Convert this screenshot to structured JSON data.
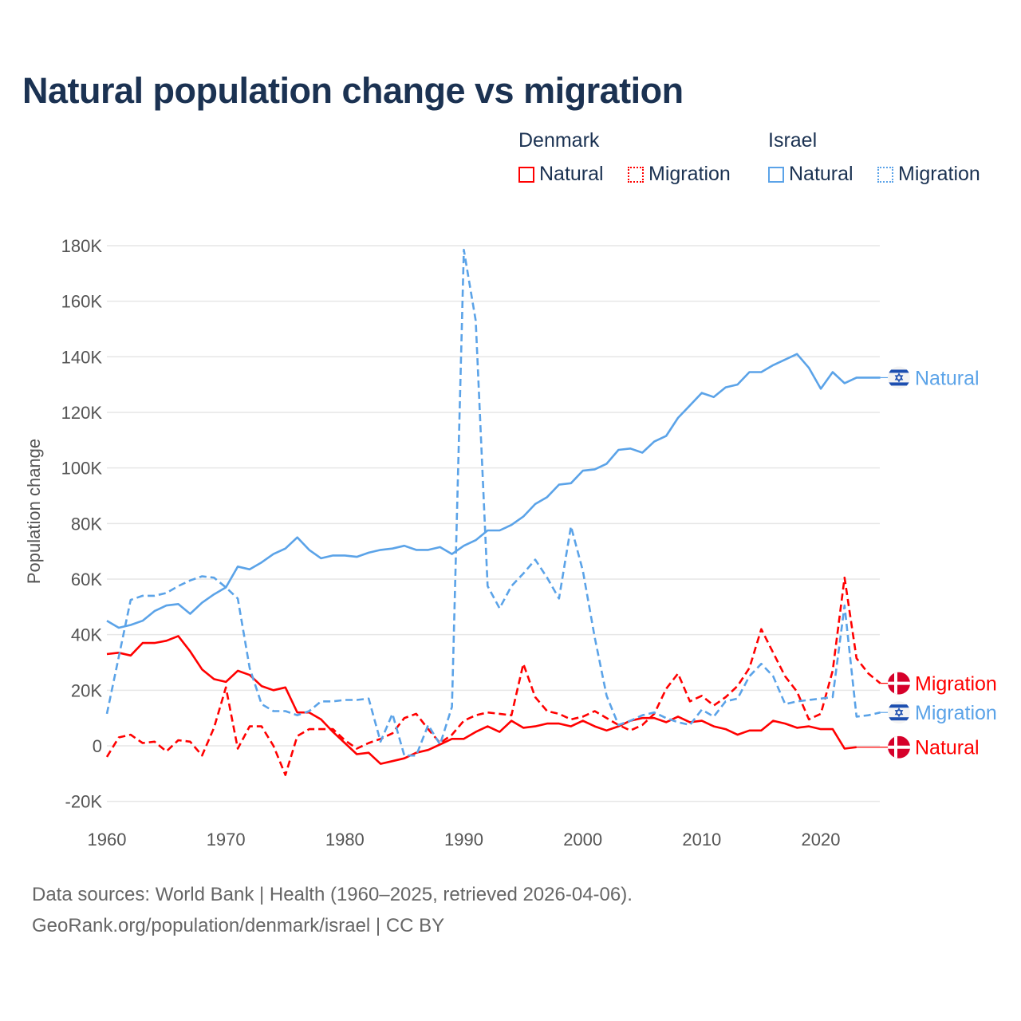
{
  "title": "Natural population change vs migration",
  "legend": {
    "groups": [
      {
        "name": "Denmark",
        "color": "#ff0000",
        "items": [
          "Natural",
          "Migration"
        ]
      },
      {
        "name": "Israel",
        "color": "#5ba3e8",
        "items": [
          "Natural",
          "Migration"
        ]
      }
    ]
  },
  "footer": {
    "line1": "Data sources: World Bank | Health (1960–2025, retrieved 2026-04-06).",
    "line2": "GeoRank.org/population/denmark/israel | CC BY"
  },
  "chart_data": {
    "type": "line",
    "title": "Natural population change vs migration",
    "xlabel": "",
    "ylabel": "Population change",
    "xlim": [
      1960,
      2025
    ],
    "ylim": [
      -20000,
      180000
    ],
    "grid": true,
    "legend_position": "top-right",
    "x_ticks": [
      1960,
      1970,
      1980,
      1990,
      2000,
      2010,
      2020
    ],
    "x_tick_labels": [
      "1960",
      "1970",
      "1980",
      "1990",
      "2000",
      "2010",
      "2020"
    ],
    "y_ticks": [
      -20000,
      0,
      20000,
      40000,
      60000,
      80000,
      100000,
      120000,
      140000,
      160000,
      180000
    ],
    "y_tick_labels": [
      "-20K",
      "0",
      "20K",
      "40K",
      "60K",
      "80K",
      "100K",
      "120K",
      "140K",
      "160K",
      "180K"
    ],
    "x_start": 1960,
    "series": [
      {
        "name": "Denmark Natural",
        "end_label": "Natural",
        "flag": "denmark",
        "color": "#ff0000",
        "dash": false,
        "values": [
          33000,
          33500,
          32500,
          37000,
          37000,
          37800,
          39500,
          34000,
          27500,
          24000,
          23000,
          27000,
          25500,
          21500,
          20000,
          21000,
          12000,
          12000,
          9500,
          5000,
          1000,
          -3000,
          -2500,
          -6500,
          -5500,
          -4500,
          -2500,
          -1500,
          500,
          2500,
          2500,
          5000,
          7000,
          5000,
          9000,
          6500,
          7000,
          8000,
          8000,
          7000,
          9000,
          7000,
          5500,
          7000,
          9000,
          10000,
          10000,
          8500,
          10500,
          8500,
          9000,
          7000,
          6000,
          4000,
          5500,
          5500,
          9000,
          8000,
          6500,
          7000,
          6000,
          6000,
          -1000,
          -500
        ]
      },
      {
        "name": "Denmark Migration",
        "end_label": "Migration",
        "flag": "denmark",
        "color": "#ff0000",
        "dash": true,
        "values": [
          -4000,
          3000,
          4000,
          1000,
          1500,
          -2000,
          2000,
          1500,
          -3500,
          6500,
          21000,
          -1000,
          7000,
          7000,
          0,
          -10500,
          3500,
          6000,
          6000,
          6000,
          2000,
          -1000,
          1000,
          2500,
          4500,
          10000,
          11500,
          6000,
          1000,
          4000,
          9000,
          11000,
          12000,
          11500,
          11000,
          29500,
          17500,
          12500,
          11500,
          9500,
          10500,
          12500,
          10000,
          7500,
          5500,
          7500,
          11500,
          20500,
          26000,
          16000,
          18000,
          14500,
          17500,
          21500,
          28000,
          42000,
          33500,
          25000,
          19500,
          9500,
          11500,
          27000,
          60500,
          31500,
          26000,
          22500
        ]
      },
      {
        "name": "Israel Natural",
        "end_label": "Natural",
        "flag": "israel",
        "color": "#5ba3e8",
        "dash": false,
        "values": [
          45000,
          42500,
          43500,
          45000,
          48500,
          50500,
          51000,
          47500,
          51500,
          54500,
          57000,
          64500,
          63500,
          66000,
          69000,
          71000,
          75000,
          70500,
          67500,
          68500,
          68500,
          68000,
          69500,
          70500,
          71000,
          72000,
          70500,
          70500,
          71500,
          69000,
          72000,
          74000,
          77500,
          77500,
          79500,
          82500,
          87000,
          89500,
          94000,
          94500,
          99000,
          99500,
          101500,
          106500,
          107000,
          105500,
          109500,
          111500,
          118000,
          122500,
          127000,
          125500,
          129000,
          130000,
          134500,
          134500,
          137000,
          139000,
          141000,
          136000,
          128500,
          134500,
          130500,
          132500,
          132500,
          132500
        ]
      },
      {
        "name": "Israel Migration",
        "end_label": "Migration",
        "flag": "israel",
        "color": "#5ba3e8",
        "dash": true,
        "values": [
          11500,
          32000,
          52500,
          54000,
          54000,
          55000,
          57500,
          59500,
          61000,
          60500,
          57000,
          53000,
          28000,
          15000,
          12500,
          12500,
          11000,
          12500,
          16000,
          16000,
          16500,
          16500,
          17000,
          1500,
          11500,
          -3500,
          -3500,
          7500,
          500,
          14000,
          178500,
          153000,
          57500,
          49500,
          57500,
          62000,
          67000,
          60500,
          53000,
          79000,
          63000,
          39000,
          18000,
          7500,
          9000,
          11000,
          12000,
          10000,
          8500,
          7500,
          13000,
          10500,
          16000,
          17000,
          25000,
          29500,
          25000,
          15000,
          16000,
          16500,
          17000,
          17500,
          50500,
          10500,
          11000,
          12000
        ]
      }
    ]
  }
}
